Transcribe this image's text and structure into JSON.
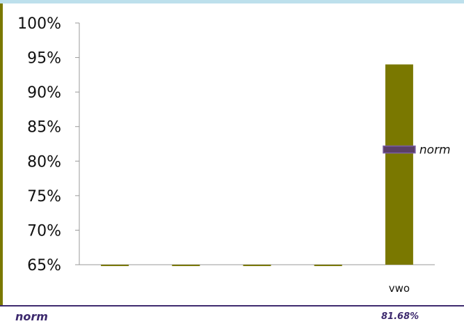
{
  "chart_data": {
    "type": "bar",
    "categories": [
      "",
      "",
      "",
      "",
      "vwo"
    ],
    "values": [
      65,
      65,
      65,
      65,
      94
    ],
    "ylim": [
      65,
      100
    ],
    "yticks": [
      "100%",
      "95%",
      "90%",
      "85%",
      "80%",
      "75%",
      "70%",
      "65%"
    ],
    "ytick_values": [
      100,
      95,
      90,
      85,
      80,
      75,
      70,
      65
    ],
    "norm": {
      "label": "norm",
      "value": 81.68
    },
    "grid": false,
    "bar_color": "#7a7800",
    "norm_color": "#5a3f66"
  },
  "footer": {
    "label": "norm",
    "value": "81.68%"
  }
}
